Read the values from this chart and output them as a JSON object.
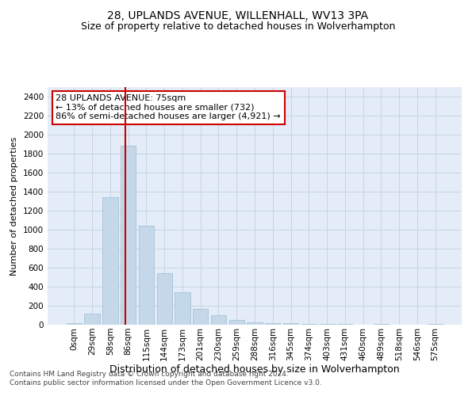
{
  "title": "28, UPLANDS AVENUE, WILLENHALL, WV13 3PA",
  "subtitle": "Size of property relative to detached houses in Wolverhampton",
  "xlabel": "Distribution of detached houses by size in Wolverhampton",
  "ylabel": "Number of detached properties",
  "categories": [
    "0sqm",
    "29sqm",
    "58sqm",
    "86sqm",
    "115sqm",
    "144sqm",
    "173sqm",
    "201sqm",
    "230sqm",
    "259sqm",
    "288sqm",
    "316sqm",
    "345sqm",
    "374sqm",
    "403sqm",
    "431sqm",
    "460sqm",
    "489sqm",
    "518sqm",
    "546sqm",
    "575sqm"
  ],
  "values": [
    15,
    120,
    1340,
    1880,
    1040,
    540,
    340,
    170,
    100,
    50,
    25,
    20,
    15,
    10,
    8,
    5,
    3,
    10,
    3,
    3,
    10
  ],
  "bar_color": "#c5d8ea",
  "bar_edgecolor": "#9bbdd4",
  "vline_x": 2.85,
  "vline_color": "#cc0000",
  "annotation_text": "28 UPLANDS AVENUE: 75sqm\n← 13% of detached houses are smaller (732)\n86% of semi-detached houses are larger (4,921) →",
  "annotation_box_color": "white",
  "annotation_box_edgecolor": "#cc0000",
  "ylim": [
    0,
    2500
  ],
  "yticks": [
    0,
    200,
    400,
    600,
    800,
    1000,
    1200,
    1400,
    1600,
    1800,
    2000,
    2200,
    2400
  ],
  "grid_color": "#c8d4e4",
  "background_color": "#e4ecf7",
  "footer_line1": "Contains HM Land Registry data © Crown copyright and database right 2024.",
  "footer_line2": "Contains public sector information licensed under the Open Government Licence v3.0.",
  "title_fontsize": 10,
  "subtitle_fontsize": 9,
  "xlabel_fontsize": 9,
  "ylabel_fontsize": 8,
  "tick_fontsize": 7.5,
  "annotation_fontsize": 8,
  "footer_fontsize": 6.5
}
